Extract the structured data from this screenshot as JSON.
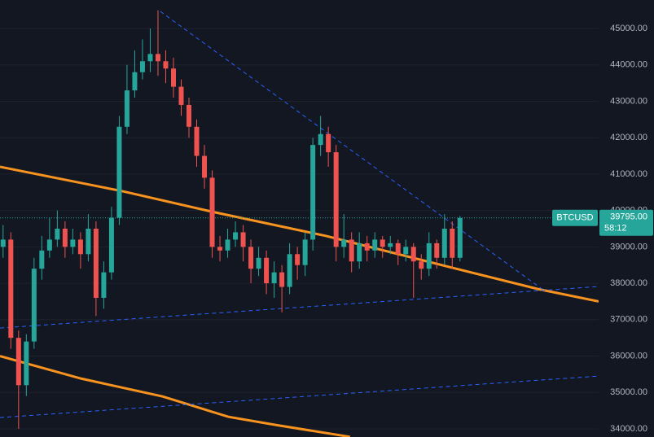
{
  "chart_data": {
    "type": "candlestick",
    "symbol": "BTCUSD",
    "last_price": {
      "value": 39795,
      "label": "39795.00"
    },
    "countdown": "58:12",
    "up_color": "#26a69a",
    "down_color": "#ef5350",
    "xlim": [
      -0.4,
      76.9
    ],
    "ylim": [
      33776,
      45783
    ],
    "yticks": [
      {
        "value": 34000,
        "label": "34000.00"
      },
      {
        "value": 35000,
        "label": "35000.00"
      },
      {
        "value": 36000,
        "label": "36000.00"
      },
      {
        "value": 37000,
        "label": "37000.00"
      },
      {
        "value": 38000,
        "label": "38000.00"
      },
      {
        "value": 39000,
        "label": "39000.00"
      },
      {
        "value": 40000,
        "label": "40000.00"
      },
      {
        "value": 41000,
        "label": "41000.00"
      },
      {
        "value": 42000,
        "label": "42000.00"
      },
      {
        "value": 43000,
        "label": "43000.00"
      },
      {
        "value": 44000,
        "label": "44000.00"
      },
      {
        "value": 45000,
        "label": "45000.00"
      }
    ],
    "grid": true,
    "open": [
      39000,
      39200,
      36500,
      35200,
      36400,
      38400,
      38900,
      39200,
      39500,
      39000,
      39200,
      38800,
      39500,
      37600,
      38300,
      39800,
      42300,
      43300,
      43800,
      44100,
      44300,
      44100,
      43900,
      43400,
      42900,
      42300,
      41500,
      40900,
      39000,
      38900,
      39200,
      39400,
      39000,
      38400,
      38700,
      38000,
      38300,
      37900,
      38800,
      38500,
      39200,
      41800,
      42100,
      41600,
      39000,
      39200,
      38600,
      39100,
      38900,
      39200,
      39000,
      39100,
      38800,
      39000,
      38600,
      38400,
      39100,
      38700,
      39500,
      38700
    ],
    "high": [
      39600,
      39400,
      36700,
      36600,
      38700,
      39300,
      39800,
      40000,
      39700,
      39500,
      39400,
      39900,
      39700,
      38600,
      40100,
      42600,
      44000,
      44400,
      44700,
      45000,
      45500,
      44400,
      44200,
      43600,
      43100,
      42500,
      41800,
      41100,
      39300,
      39500,
      39700,
      39600,
      39200,
      39000,
      38900,
      38600,
      38500,
      39100,
      39000,
      39400,
      42000,
      42600,
      42300,
      41800,
      39900,
      39400,
      39400,
      39300,
      39400,
      39300,
      39300,
      39200,
      39200,
      39100,
      38800,
      39400,
      39200,
      39900,
      39700,
      39850
    ],
    "low": [
      38700,
      36200,
      34000,
      34900,
      36200,
      38100,
      38700,
      39000,
      38700,
      38800,
      38400,
      38600,
      37100,
      37300,
      38100,
      39600,
      42100,
      43100,
      43600,
      43800,
      43700,
      43500,
      43100,
      42600,
      42000,
      41200,
      40600,
      38700,
      38600,
      38700,
      39000,
      38600,
      38000,
      38200,
      37700,
      37600,
      37200,
      37700,
      38100,
      38200,
      38900,
      41500,
      41200,
      38600,
      38700,
      38300,
      38400,
      38600,
      38700,
      38700,
      38800,
      38500,
      38600,
      37600,
      38100,
      38200,
      38400,
      38500,
      38400,
      38600
    ],
    "close": [
      39200,
      36500,
      35200,
      36400,
      38400,
      38900,
      39200,
      39500,
      39000,
      39200,
      38800,
      39500,
      37600,
      38300,
      39800,
      42300,
      43300,
      43800,
      44100,
      44300,
      44100,
      43900,
      43400,
      42900,
      42300,
      41500,
      40900,
      39000,
      38900,
      39200,
      39400,
      39000,
      38400,
      38700,
      38000,
      38300,
      37900,
      38800,
      38500,
      39200,
      41800,
      42100,
      41600,
      39000,
      39200,
      38600,
      39100,
      38900,
      39200,
      39000,
      39100,
      38800,
      39000,
      38600,
      38400,
      39100,
      38700,
      39500,
      38700,
      39795
    ],
    "lines": [
      {
        "color": "#f7931e",
        "style": "solid",
        "x": [
          -0.4,
          15.4,
          26.9,
          41.7,
          58.5,
          69.1,
          76.9
        ],
        "values": [
          41200,
          40530,
          39970,
          39300,
          38400,
          37840,
          37500
        ]
      },
      {
        "color": "#f7931e",
        "style": "solid",
        "x": [
          -0.4,
          10.1,
          20.6,
          29.1,
          35.4,
          44.8
        ],
        "values": [
          36000,
          35380,
          34890,
          34330,
          34100,
          33780
        ]
      },
      {
        "color": "#2962ff",
        "style": "dashed",
        "x": [
          20.3,
          69.6
        ],
        "values": [
          45470,
          37840
        ]
      },
      {
        "color": "#2962ff",
        "style": "dashed",
        "x": [
          -0.4,
          76.9
        ],
        "values": [
          36770,
          37910
        ]
      },
      {
        "color": "#2962ff",
        "style": "dashed",
        "x": [
          -0.4,
          76.9
        ],
        "values": [
          34310,
          35450
        ]
      }
    ]
  }
}
